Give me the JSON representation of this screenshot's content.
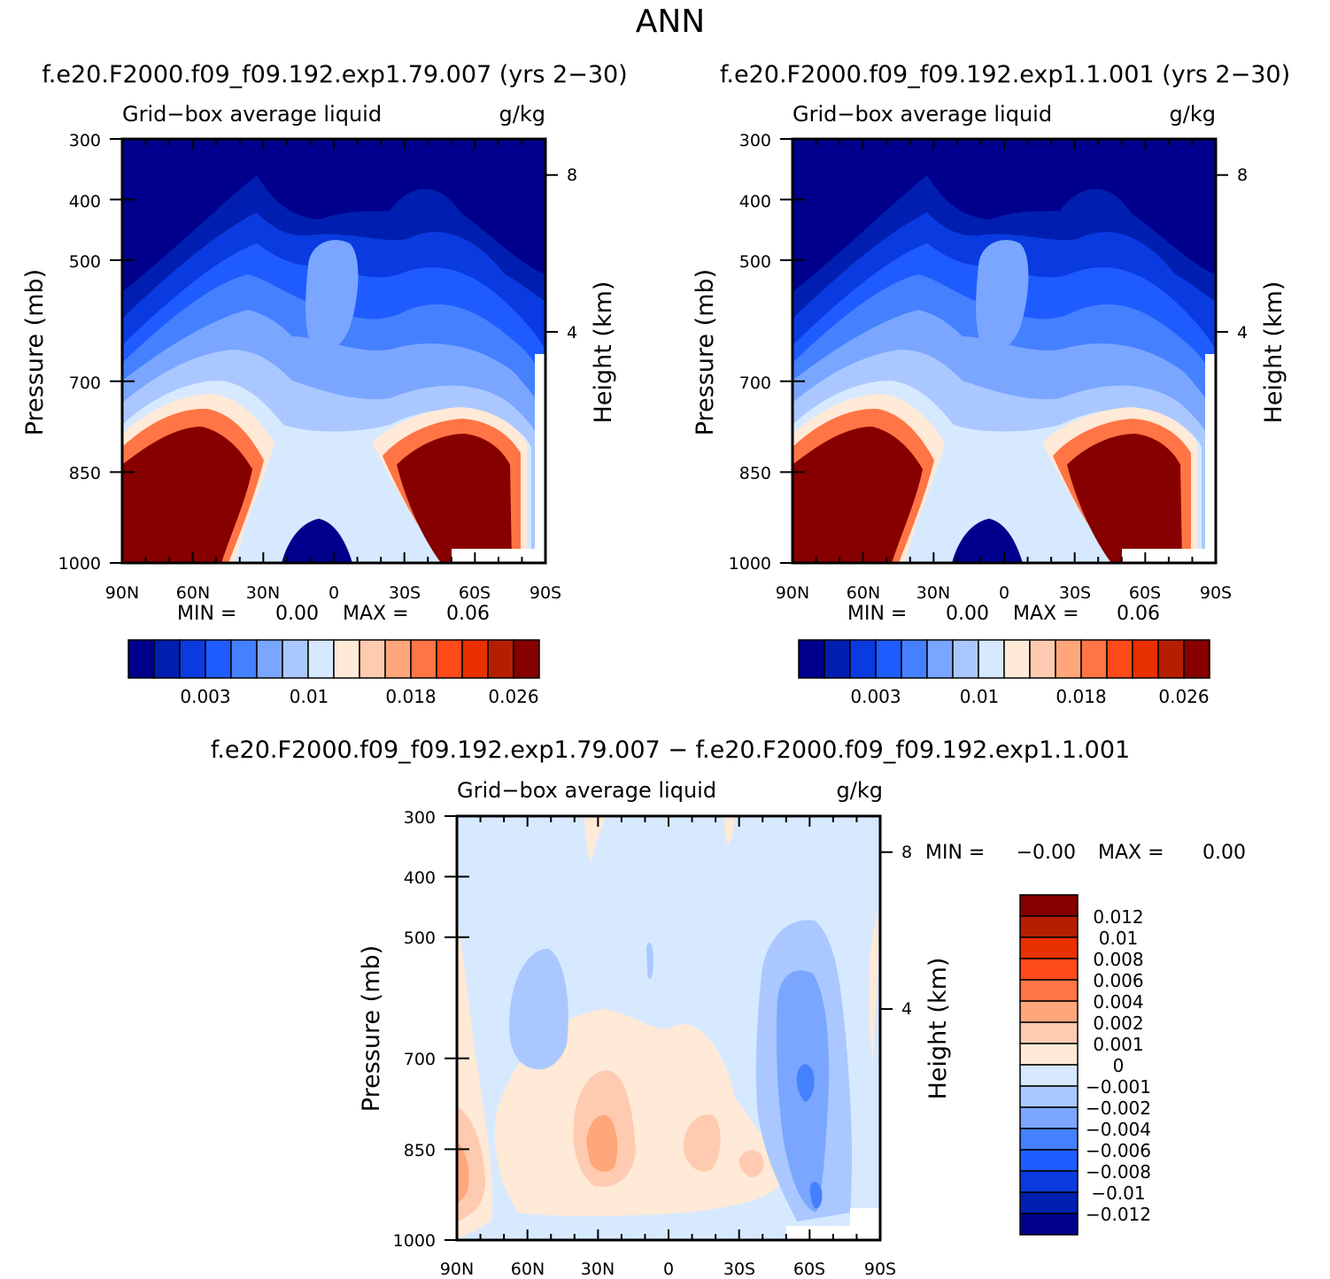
{
  "figure": {
    "title": "ANN",
    "diff_title": "f.e20.F2000.f09_f09.192.exp1.79.007 − f.e20.F2000.f09_f09.192.exp1.1.001"
  },
  "chart_data": [
    {
      "type": "heatmap",
      "case_title": "f.e20.F2000.f09_f09.192.exp1.79.007 (yrs 2−30)",
      "variable": "Grid−box average liquid",
      "units": "g/kg",
      "ylabel": "Pressure (mb)",
      "y2label": "Height (km)",
      "x_ticks": [
        "90N",
        "60N",
        "30N",
        "0",
        "30S",
        "60S",
        "90S"
      ],
      "y_ticks": [
        "300",
        "400",
        "500",
        "700",
        "850",
        "1000"
      ],
      "y2_ticks": [
        "8",
        "4"
      ],
      "stats": {
        "min_label": "MIN =",
        "min": "0.00",
        "max_label": "MAX =",
        "max": "0.06"
      },
      "colorbar_labels": [
        "0.003",
        "0.01",
        "0.018",
        "0.026"
      ],
      "colors": [
        "#00008c",
        "#001fb0",
        "#0a3be0",
        "#1f5cff",
        "#4580ff",
        "#7aa6ff",
        "#aac8ff",
        "#d7e9ff",
        "#ffe9d7",
        "#ffcbb0",
        "#ffa67a",
        "#ff7545",
        "#ff4a1a",
        "#e83000",
        "#b51f00",
        "#870000"
      ]
    },
    {
      "type": "heatmap",
      "case_title": "f.e20.F2000.f09_f09.192.exp1.1.001 (yrs 2−30)",
      "variable": "Grid−box average liquid",
      "units": "g/kg",
      "ylabel": "Pressure (mb)",
      "y2label": "Height (km)",
      "x_ticks": [
        "90N",
        "60N",
        "30N",
        "0",
        "30S",
        "60S",
        "90S"
      ],
      "y_ticks": [
        "300",
        "400",
        "500",
        "700",
        "850",
        "1000"
      ],
      "y2_ticks": [
        "8",
        "4"
      ],
      "stats": {
        "min_label": "MIN =",
        "min": "0.00",
        "max_label": "MAX =",
        "max": "0.06"
      },
      "colorbar_labels": [
        "0.003",
        "0.01",
        "0.018",
        "0.026"
      ],
      "colors": [
        "#00008c",
        "#001fb0",
        "#0a3be0",
        "#1f5cff",
        "#4580ff",
        "#7aa6ff",
        "#aac8ff",
        "#d7e9ff",
        "#ffe9d7",
        "#ffcbb0",
        "#ffa67a",
        "#ff7545",
        "#ff4a1a",
        "#e83000",
        "#b51f00",
        "#870000"
      ]
    },
    {
      "type": "heatmap",
      "variable": "Grid−box average liquid",
      "units": "g/kg",
      "ylabel": "Pressure (mb)",
      "y2label": "Height (km)",
      "x_ticks": [
        "90N",
        "60N",
        "30N",
        "0",
        "30S",
        "60S",
        "90S"
      ],
      "y_ticks": [
        "300",
        "400",
        "500",
        "700",
        "850",
        "1000"
      ],
      "y2_ticks": [
        "8",
        "4"
      ],
      "stats": {
        "min_label": "MIN =",
        "min": "−0.00",
        "max_label": "MAX =",
        "max": "0.00"
      },
      "colorbar_labels": [
        "0.012",
        "0.01",
        "0.008",
        "0.006",
        "0.004",
        "0.002",
        "0.001",
        "0",
        "−0.001",
        "−0.002",
        "−0.004",
        "−0.006",
        "−0.008",
        "−0.01",
        "−0.012"
      ],
      "colors": [
        "#870000",
        "#b51f00",
        "#e83000",
        "#ff4a1a",
        "#ff7545",
        "#ffa67a",
        "#ffcbb0",
        "#ffe9d7",
        "#d7e9ff",
        "#aac8ff",
        "#7aa6ff",
        "#4580ff",
        "#1f5cff",
        "#0a3be0",
        "#001fb0",
        "#00008c"
      ]
    }
  ]
}
